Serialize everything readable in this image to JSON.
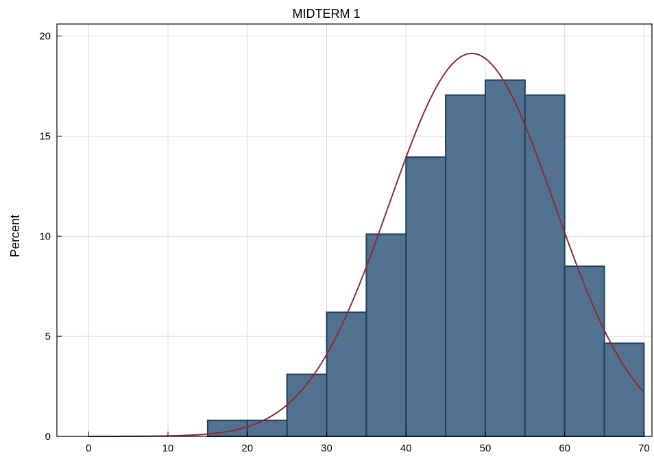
{
  "chart_data": {
    "type": "bar",
    "title": "MIDTERM 1",
    "xlabel": "",
    "ylabel": "Percent",
    "xlim": [
      -4,
      71
    ],
    "ylim": [
      0,
      20.6
    ],
    "xticks": [
      0,
      10,
      20,
      30,
      40,
      50,
      60,
      70
    ],
    "yticks": [
      0,
      5,
      10,
      15,
      20
    ],
    "grid": true,
    "bins": [
      {
        "start": 15,
        "end": 20,
        "value": 0.8
      },
      {
        "start": 20,
        "end": 25,
        "value": 0.8
      },
      {
        "start": 25,
        "end": 30,
        "value": 3.1
      },
      {
        "start": 30,
        "end": 35,
        "value": 6.2
      },
      {
        "start": 35,
        "end": 40,
        "value": 10.1
      },
      {
        "start": 40,
        "end": 45,
        "value": 13.95
      },
      {
        "start": 45,
        "end": 50,
        "value": 17.05
      },
      {
        "start": 50,
        "end": 55,
        "value": 17.8
      },
      {
        "start": 55,
        "end": 60,
        "value": 17.05
      },
      {
        "start": 60,
        "end": 65,
        "value": 8.5
      },
      {
        "start": 65,
        "end": 70,
        "value": 4.65
      }
    ],
    "normal_curve": {
      "mean": 48.3,
      "sd": 10.42,
      "peak": 19.13,
      "x_range": [
        0,
        70
      ]
    },
    "colors": {
      "bar_fill": "#53728f",
      "bar_edge": "#1b3f66",
      "curve": "#8b2a35",
      "grid": "#dcdcdc"
    }
  }
}
